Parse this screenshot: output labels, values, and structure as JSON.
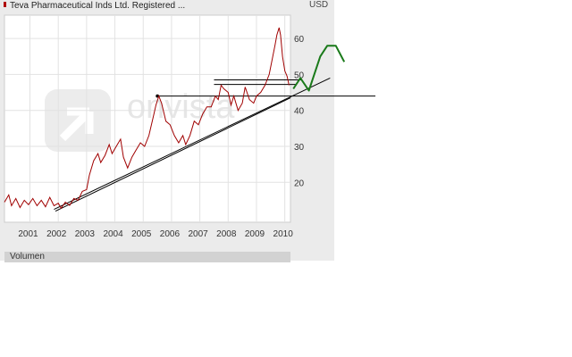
{
  "header": {
    "title": "Teva Pharmaceutical Inds Ltd. Registered ...",
    "currency": "USD"
  },
  "watermark": "onvista",
  "volume_label": "Volumen",
  "colors": {
    "price_line": "#a00000",
    "trend_lines": "#000000",
    "projection_arrow": "#1a7a1a",
    "title_marker": "#b00000"
  },
  "chart_data": {
    "type": "line",
    "title": "Teva Pharmaceutical Inds Ltd. Registered ...",
    "ylabel": "USD",
    "xlim": [
      2000.1,
      2010.2
    ],
    "ylim": [
      10,
      67
    ],
    "x_ticks": [
      2001,
      2002,
      2003,
      2004,
      2005,
      2006,
      2007,
      2008,
      2009,
      2010
    ],
    "y_ticks": [
      20,
      30,
      40,
      50,
      60
    ],
    "grid": true,
    "series": [
      {
        "points": [
          [
            2000.1,
            14.5
          ],
          [
            2000.25,
            16.5
          ],
          [
            2000.35,
            13.5
          ],
          [
            2000.5,
            15.5
          ],
          [
            2000.65,
            13.0
          ],
          [
            2000.8,
            15.0
          ],
          [
            2000.95,
            13.8
          ],
          [
            2001.1,
            15.5
          ],
          [
            2001.25,
            13.5
          ],
          [
            2001.4,
            15.0
          ],
          [
            2001.55,
            13.2
          ],
          [
            2001.7,
            15.8
          ],
          [
            2001.85,
            13.5
          ],
          [
            2002.0,
            14.2
          ],
          [
            2002.1,
            12.8
          ],
          [
            2002.25,
            14.5
          ],
          [
            2002.4,
            13.6
          ],
          [
            2002.55,
            15.5
          ],
          [
            2002.7,
            15.0
          ],
          [
            2002.85,
            17.5
          ],
          [
            2003.0,
            18.0
          ],
          [
            2003.1,
            22.0
          ],
          [
            2003.25,
            26.0
          ],
          [
            2003.4,
            28.0
          ],
          [
            2003.5,
            25.5
          ],
          [
            2003.65,
            27.5
          ],
          [
            2003.8,
            30.5
          ],
          [
            2003.9,
            28.0
          ],
          [
            2004.05,
            30.0
          ],
          [
            2004.2,
            32.0
          ],
          [
            2004.3,
            27.0
          ],
          [
            2004.45,
            24.0
          ],
          [
            2004.6,
            27.0
          ],
          [
            2004.75,
            29.0
          ],
          [
            2004.9,
            31.0
          ],
          [
            2005.05,
            30.0
          ],
          [
            2005.2,
            33.0
          ],
          [
            2005.35,
            38.0
          ],
          [
            2005.45,
            41.5
          ],
          [
            2005.55,
            44.0
          ],
          [
            2005.65,
            42.0
          ],
          [
            2005.8,
            37.0
          ],
          [
            2005.95,
            36.0
          ],
          [
            2006.1,
            33.0
          ],
          [
            2006.25,
            31.0
          ],
          [
            2006.4,
            33.0
          ],
          [
            2006.5,
            30.5
          ],
          [
            2006.65,
            33.0
          ],
          [
            2006.8,
            37.0
          ],
          [
            2006.95,
            36.0
          ],
          [
            2007.1,
            39.0
          ],
          [
            2007.25,
            41.0
          ],
          [
            2007.4,
            41.0
          ],
          [
            2007.55,
            44.0
          ],
          [
            2007.65,
            43.0
          ],
          [
            2007.75,
            47.0
          ],
          [
            2007.85,
            46.0
          ],
          [
            2008.0,
            45.0
          ],
          [
            2008.1,
            41.5
          ],
          [
            2008.2,
            44.0
          ],
          [
            2008.35,
            40.0
          ],
          [
            2008.5,
            42.0
          ],
          [
            2008.6,
            46.5
          ],
          [
            2008.75,
            43.0
          ],
          [
            2008.9,
            42.0
          ],
          [
            2009.0,
            44.0
          ],
          [
            2009.15,
            45.0
          ],
          [
            2009.3,
            47.0
          ],
          [
            2009.45,
            50.0
          ],
          [
            2009.55,
            54.0
          ],
          [
            2009.65,
            58.0
          ],
          [
            2009.72,
            61.0
          ],
          [
            2009.8,
            63.0
          ],
          [
            2009.85,
            61.0
          ],
          [
            2009.92,
            55.0
          ],
          [
            2010.0,
            51.0
          ],
          [
            2010.08,
            49.5
          ],
          [
            2010.15,
            47.0
          ]
        ]
      }
    ],
    "annotations": {
      "trend_lines": [
        {
          "from": [
            2001.85,
            12.5
          ],
          "to": [
            2011.6,
            49.0
          ]
        },
        {
          "from": [
            2001.9,
            12.0
          ],
          "to": [
            2010.2,
            43.5
          ]
        }
      ],
      "horizontal_lines": [
        {
          "y": 44.0,
          "x_from": 2005.5,
          "x_to": 2013.2
        },
        {
          "y": 48.5,
          "x_from": 2007.5,
          "x_to": 2010.6
        },
        {
          "y": 47.2,
          "x_from": 2007.5,
          "x_to": 2010.4
        }
      ],
      "projection_arrow": [
        [
          2010.3,
          46.0
        ],
        [
          2010.55,
          49.0
        ],
        [
          2010.85,
          45.5
        ],
        [
          2011.25,
          55.0
        ],
        [
          2011.5,
          58.0
        ],
        [
          2011.8,
          58.0
        ],
        [
          2012.1,
          53.5
        ]
      ]
    }
  }
}
